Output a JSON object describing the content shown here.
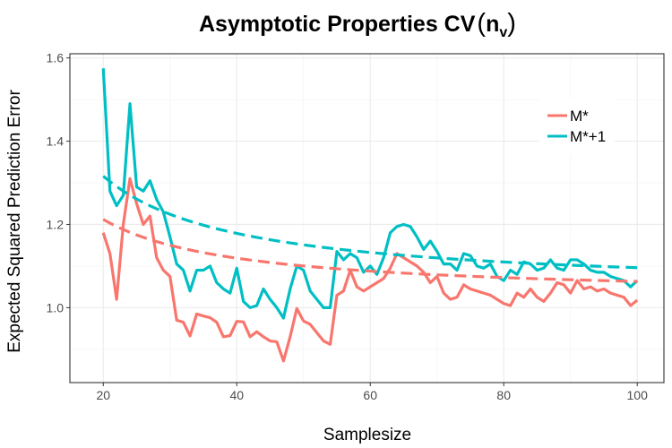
{
  "chart_data": {
    "type": "line",
    "title": "Asymptotic Properties CV",
    "title_paren_open": "(",
    "title_paren_close": ")",
    "title_math_base": "n",
    "title_math_sub": "v",
    "xlabel": "Samplesize",
    "ylabel": "Expected Squared Prediction Error",
    "xlim": [
      15,
      104
    ],
    "ylim": [
      0.82,
      1.61
    ],
    "xticks": [
      20,
      40,
      60,
      80,
      100
    ],
    "xtick_labels": [
      "20",
      "40",
      "60",
      "80",
      "100"
    ],
    "yticks": [
      1.0,
      1.2,
      1.4,
      1.6
    ],
    "ytick_labels": [
      "1.0",
      "1.2",
      "1.4",
      "1.6"
    ],
    "grid": true,
    "legend_position": "top-right",
    "x": [
      20,
      21,
      22,
      23,
      24,
      25,
      26,
      27,
      28,
      29,
      30,
      31,
      32,
      33,
      34,
      35,
      36,
      37,
      38,
      39,
      40,
      41,
      42,
      43,
      44,
      45,
      46,
      47,
      48,
      49,
      50,
      51,
      52,
      53,
      54,
      55,
      56,
      57,
      58,
      59,
      60,
      61,
      62,
      63,
      64,
      65,
      66,
      67,
      68,
      69,
      70,
      71,
      72,
      73,
      74,
      75,
      76,
      77,
      78,
      79,
      80,
      81,
      82,
      83,
      84,
      85,
      86,
      87,
      88,
      89,
      90,
      91,
      92,
      93,
      94,
      95,
      96,
      97,
      98,
      99,
      100
    ],
    "series": [
      {
        "name": "M*",
        "color": "#F8766D",
        "values": [
          1.18,
          1.13,
          1.02,
          1.2,
          1.31,
          1.25,
          1.2,
          1.22,
          1.12,
          1.09,
          1.075,
          0.97,
          0.965,
          0.932,
          0.985,
          0.98,
          0.976,
          0.965,
          0.93,
          0.933,
          0.967,
          0.966,
          0.93,
          0.942,
          0.93,
          0.92,
          0.918,
          0.872,
          0.93,
          0.998,
          0.968,
          0.96,
          0.94,
          0.92,
          0.912,
          1.03,
          1.04,
          1.09,
          1.05,
          1.04,
          1.05,
          1.06,
          1.07,
          1.095,
          1.13,
          1.12,
          1.11,
          1.1,
          1.085,
          1.06,
          1.075,
          1.035,
          1.02,
          1.025,
          1.055,
          1.045,
          1.04,
          1.035,
          1.03,
          1.02,
          1.01,
          1.005,
          1.035,
          1.025,
          1.045,
          1.025,
          1.015,
          1.035,
          1.06,
          1.055,
          1.035,
          1.065,
          1.045,
          1.05,
          1.04,
          1.045,
          1.035,
          1.03,
          1.025,
          1.005,
          1.018
        ]
      },
      {
        "name": "M*+1",
        "color": "#00BFC4",
        "values": [
          1.575,
          1.28,
          1.245,
          1.27,
          1.49,
          1.29,
          1.28,
          1.305,
          1.26,
          1.23,
          1.17,
          1.105,
          1.09,
          1.04,
          1.09,
          1.09,
          1.1,
          1.06,
          1.045,
          1.035,
          1.095,
          1.015,
          1.0,
          1.005,
          1.045,
          1.02,
          1.0,
          0.975,
          1.045,
          1.1,
          1.09,
          1.04,
          1.02,
          1.0,
          1.0,
          1.135,
          1.115,
          1.13,
          1.12,
          1.085,
          1.1,
          1.08,
          1.12,
          1.18,
          1.195,
          1.2,
          1.195,
          1.17,
          1.14,
          1.16,
          1.135,
          1.105,
          1.105,
          1.09,
          1.13,
          1.125,
          1.1,
          1.095,
          1.105,
          1.075,
          1.065,
          1.09,
          1.08,
          1.11,
          1.105,
          1.09,
          1.095,
          1.115,
          1.095,
          1.09,
          1.115,
          1.115,
          1.105,
          1.09,
          1.085,
          1.085,
          1.075,
          1.07,
          1.065,
          1.05,
          1.065
        ]
      },
      {
        "name": "M* (asymptotic)",
        "color": "#F8766D",
        "dashed": true,
        "x_range": [
          20,
          100
        ],
        "y_start": 1.212,
        "y_end": 1.063
      },
      {
        "name": "M*+1 (asymptotic)",
        "color": "#00BFC4",
        "dashed": true,
        "x_range": [
          20,
          100
        ],
        "y_start": 1.316,
        "y_end": 1.096
      }
    ]
  }
}
